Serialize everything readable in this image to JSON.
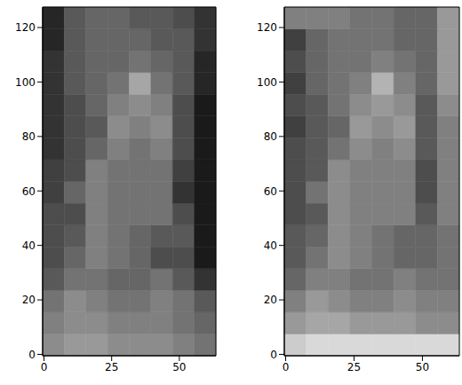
{
  "chart_data": [
    {
      "type": "heatmap",
      "xlim": [
        -0.5,
        63.5
      ],
      "ylim": [
        -0.5,
        127.5
      ],
      "xticks": [
        0,
        25,
        50
      ],
      "yticks": [
        0,
        20,
        40,
        60,
        80,
        100,
        120
      ],
      "color_range": [
        0,
        1
      ],
      "x_edges": [
        -0.5,
        7.5,
        15.5,
        23.5,
        31.5,
        39.5,
        47.5,
        55.5,
        63.5
      ],
      "y_edges": [
        -0.5,
        7.5,
        15.5,
        23.5,
        31.5,
        39.5,
        47.5,
        55.5,
        63.5,
        71.5,
        79.5,
        87.5,
        95.5,
        103.5,
        111.5,
        119.5,
        127.5
      ],
      "cells": [
        [
          0.55,
          0.6,
          0.6,
          0.55,
          0.55,
          0.55,
          0.5,
          0.45
        ],
        [
          0.5,
          0.55,
          0.55,
          0.5,
          0.5,
          0.5,
          0.45,
          0.4
        ],
        [
          0.45,
          0.55,
          0.5,
          0.45,
          0.45,
          0.5,
          0.45,
          0.35
        ],
        [
          0.35,
          0.45,
          0.45,
          0.4,
          0.4,
          0.45,
          0.35,
          0.2
        ],
        [
          0.3,
          0.4,
          0.5,
          0.45,
          0.4,
          0.3,
          0.3,
          0.1
        ],
        [
          0.3,
          0.35,
          0.5,
          0.45,
          0.4,
          0.35,
          0.35,
          0.1
        ],
        [
          0.3,
          0.3,
          0.5,
          0.45,
          0.45,
          0.45,
          0.3,
          0.1
        ],
        [
          0.25,
          0.4,
          0.5,
          0.45,
          0.45,
          0.45,
          0.2,
          0.1
        ],
        [
          0.25,
          0.3,
          0.5,
          0.45,
          0.45,
          0.45,
          0.25,
          0.1
        ],
        [
          0.2,
          0.3,
          0.4,
          0.5,
          0.45,
          0.5,
          0.3,
          0.1
        ],
        [
          0.2,
          0.3,
          0.35,
          0.55,
          0.5,
          0.55,
          0.3,
          0.1
        ],
        [
          0.2,
          0.3,
          0.4,
          0.5,
          0.55,
          0.5,
          0.3,
          0.1
        ],
        [
          0.2,
          0.35,
          0.4,
          0.45,
          0.65,
          0.45,
          0.35,
          0.15
        ],
        [
          0.2,
          0.35,
          0.4,
          0.4,
          0.45,
          0.4,
          0.35,
          0.15
        ],
        [
          0.15,
          0.35,
          0.4,
          0.4,
          0.4,
          0.35,
          0.35,
          0.2
        ],
        [
          0.15,
          0.35,
          0.4,
          0.4,
          0.35,
          0.35,
          0.3,
          0.2
        ]
      ]
    },
    {
      "type": "heatmap",
      "xlim": [
        -0.5,
        63.5
      ],
      "ylim": [
        -0.5,
        127.5
      ],
      "xticks": [
        0,
        25,
        50
      ],
      "yticks": [
        0,
        20,
        40,
        60,
        80,
        100,
        120
      ],
      "color_range": [
        0,
        1
      ],
      "x_edges": [
        -0.5,
        7.5,
        15.5,
        23.5,
        31.5,
        39.5,
        47.5,
        55.5,
        63.5
      ],
      "y_edges": [
        -0.5,
        7.5,
        15.5,
        23.5,
        31.5,
        39.5,
        47.5,
        55.5,
        63.5,
        71.5,
        79.5,
        87.5,
        95.5,
        103.5,
        111.5,
        119.5,
        127.5
      ],
      "cells": [
        [
          0.8,
          0.85,
          0.85,
          0.85,
          0.85,
          0.85,
          0.85,
          0.85
        ],
        [
          0.6,
          0.65,
          0.65,
          0.6,
          0.6,
          0.6,
          0.55,
          0.55
        ],
        [
          0.5,
          0.6,
          0.55,
          0.5,
          0.5,
          0.55,
          0.5,
          0.5
        ],
        [
          0.4,
          0.5,
          0.5,
          0.45,
          0.45,
          0.5,
          0.45,
          0.45
        ],
        [
          0.35,
          0.45,
          0.55,
          0.5,
          0.45,
          0.4,
          0.4,
          0.45
        ],
        [
          0.35,
          0.4,
          0.55,
          0.5,
          0.45,
          0.4,
          0.4,
          0.45
        ],
        [
          0.3,
          0.35,
          0.55,
          0.5,
          0.5,
          0.5,
          0.35,
          0.5
        ],
        [
          0.3,
          0.45,
          0.55,
          0.5,
          0.5,
          0.5,
          0.3,
          0.5
        ],
        [
          0.3,
          0.35,
          0.55,
          0.5,
          0.5,
          0.5,
          0.3,
          0.5
        ],
        [
          0.3,
          0.35,
          0.45,
          0.55,
          0.5,
          0.55,
          0.35,
          0.5
        ],
        [
          0.25,
          0.35,
          0.4,
          0.6,
          0.55,
          0.6,
          0.35,
          0.5
        ],
        [
          0.3,
          0.35,
          0.45,
          0.55,
          0.6,
          0.55,
          0.35,
          0.55
        ],
        [
          0.25,
          0.4,
          0.45,
          0.5,
          0.7,
          0.5,
          0.4,
          0.6
        ],
        [
          0.3,
          0.4,
          0.45,
          0.45,
          0.5,
          0.45,
          0.4,
          0.6
        ],
        [
          0.25,
          0.4,
          0.45,
          0.45,
          0.45,
          0.4,
          0.4,
          0.6
        ],
        [
          0.5,
          0.5,
          0.5,
          0.45,
          0.45,
          0.4,
          0.4,
          0.6
        ]
      ]
    }
  ]
}
